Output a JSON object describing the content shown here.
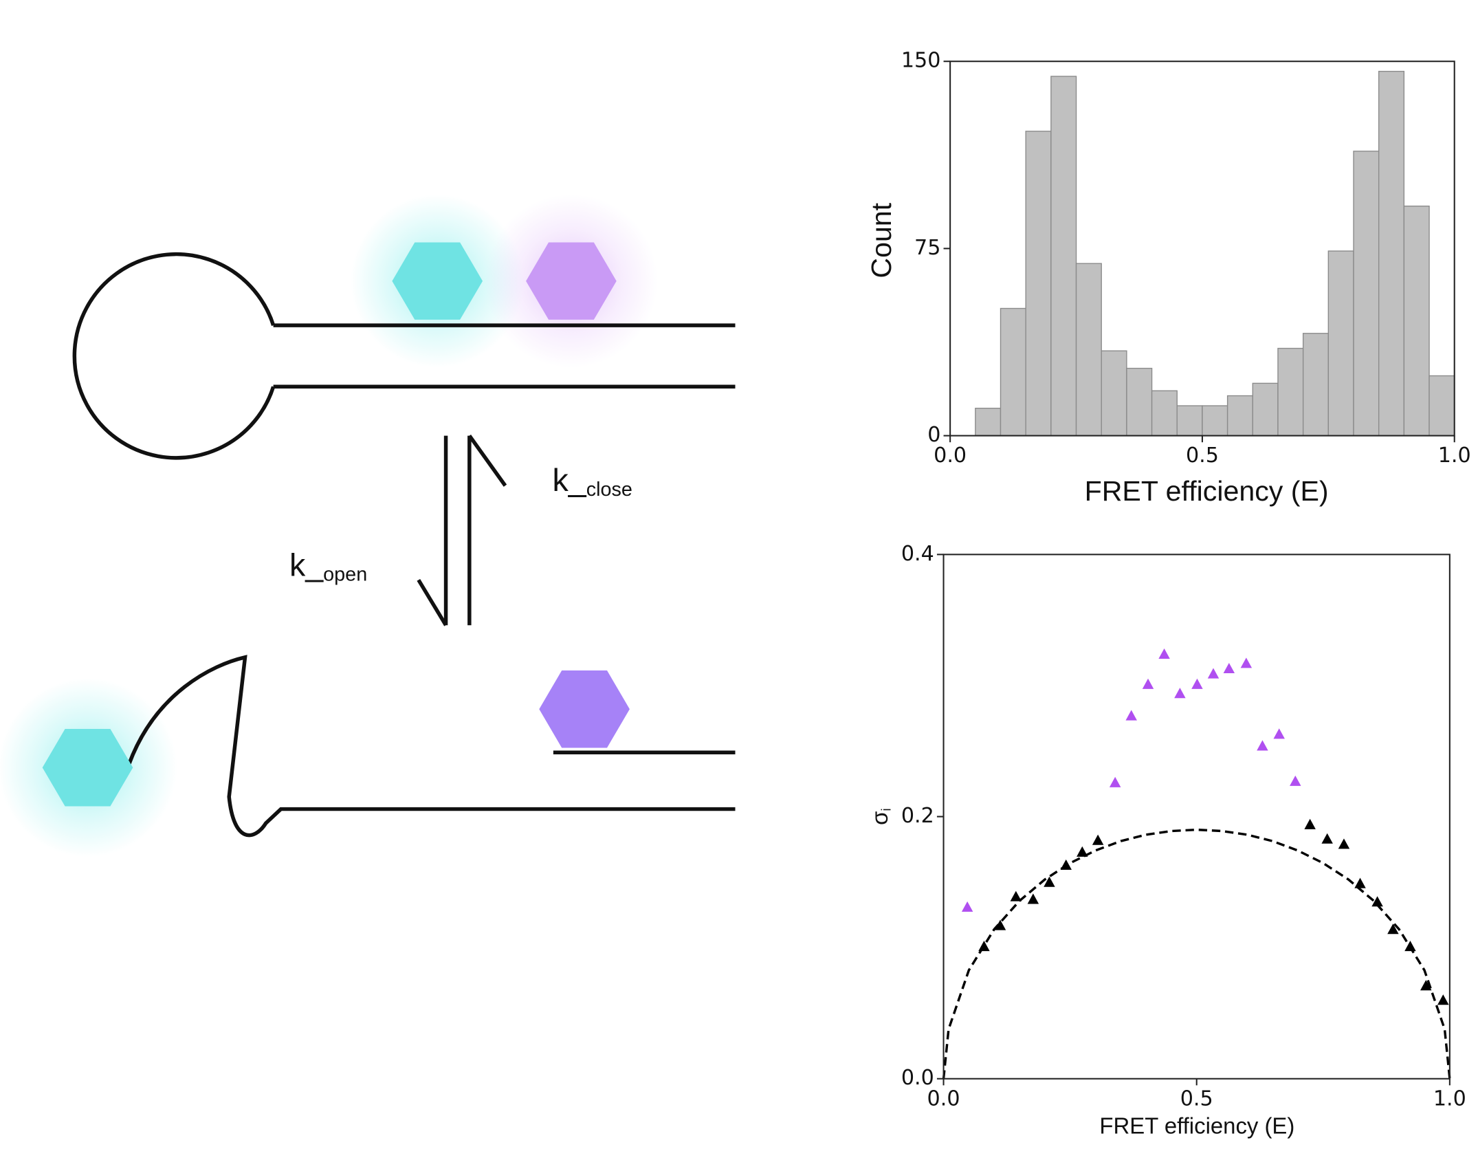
{
  "diagram": {
    "labels": [
      {
        "main": "k_",
        "sub": "close"
      },
      {
        "main": "k_",
        "sub": "open"
      }
    ]
  },
  "chart_data": [
    {
      "type": "histogram",
      "x_label": "FRET efficiency (E)",
      "y_label": "Count",
      "bins": [
        0.05,
        0.1,
        0.15,
        0.2,
        0.25,
        0.3,
        0.35,
        0.4,
        0.45,
        0.5,
        0.55,
        0.6,
        0.65,
        0.7,
        0.75,
        0.8,
        0.85,
        0.9,
        0.95,
        1.0
      ],
      "values": [
        11,
        51,
        122,
        144,
        69,
        34,
        27,
        18,
        12,
        12,
        16,
        21,
        35,
        41,
        74,
        114,
        146,
        92,
        24
      ],
      "color": "#c0c0c0",
      "xlim": [
        0,
        1
      ],
      "xticks": [
        {
          "value": 0,
          "label": "0.0"
        },
        0.5,
        {
          "value": 1,
          "label": "1.0"
        }
      ],
      "ylim": [
        0,
        150
      ],
      "yticks": [
        0,
        75,
        150
      ]
    },
    {
      "type": "scatter",
      "x_label": "FRET efficiency (E)",
      "y_label": "σ",
      "y_label_sub": "i",
      "series": [
        {
          "type": "line",
          "color": "#000000",
          "dashed": true,
          "x": [
            0,
            0.01,
            0.05,
            0.1,
            0.15,
            0.2,
            0.25,
            0.3,
            0.35,
            0.4,
            0.45,
            0.5,
            0.55,
            0.6,
            0.65,
            0.7,
            0.75,
            0.8,
            0.85,
            0.9,
            0.95,
            0.99,
            1
          ],
          "values": [
            0,
            0.0378,
            0.0828,
            0.114,
            0.1357,
            0.152,
            0.1645,
            0.1741,
            0.1813,
            0.1862,
            0.189,
            0.19,
            0.189,
            0.1862,
            0.1813,
            0.1741,
            0.1645,
            0.152,
            0.1357,
            0.114,
            0.0828,
            0.0378,
            0
          ]
        },
        {
          "type": "scatter",
          "color": "#b04ff0",
          "x": [
            0.047,
            0.339,
            0.371,
            0.404,
            0.436,
            0.467,
            0.501,
            0.533,
            0.564,
            0.598,
            0.63,
            0.663,
            0.695
          ],
          "values": [
            0.131,
            0.226,
            0.277,
            0.301,
            0.324,
            0.294,
            0.301,
            0.309,
            0.313,
            0.317,
            0.254,
            0.263,
            0.227
          ]
        },
        {
          "type": "scatter",
          "color": "#000000",
          "x": [
            0.08,
            0.112,
            0.143,
            0.177,
            0.209,
            0.242,
            0.274,
            0.305,
            0.724,
            0.758,
            0.791,
            0.823,
            0.857,
            0.888,
            0.922,
            0.953,
            0.987
          ],
          "values": [
            0.101,
            0.117,
            0.139,
            0.137,
            0.15,
            0.163,
            0.173,
            0.182,
            0.194,
            0.183,
            0.179,
            0.149,
            0.135,
            0.114,
            0.101,
            0.071,
            0.06
          ]
        }
      ],
      "xlim": [
        0,
        1
      ],
      "xticks": [
        {
          "value": 0,
          "label": "0.0"
        },
        0.5,
        {
          "value": 1,
          "label": "1.0"
        }
      ],
      "ylim": [
        0,
        0.4
      ],
      "yticks": [
        {
          "value": 0,
          "label": "0.0"
        },
        0.2,
        0.4
      ]
    }
  ]
}
